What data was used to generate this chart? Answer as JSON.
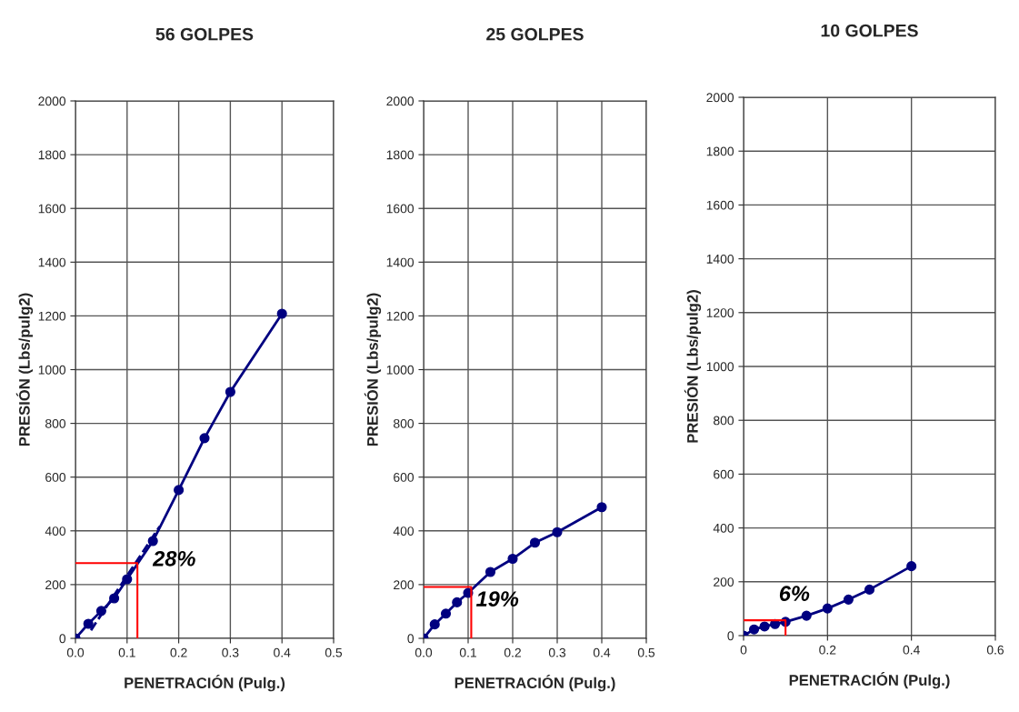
{
  "chart_data": [
    {
      "type": "line",
      "title": "56 GOLPES",
      "xlabel": "PENETRACIÓN (Pulg.)",
      "ylabel": "PRESIÓN (Lbs/pulg2)",
      "xlim": [
        0,
        0.5
      ],
      "xticks": [
        {
          "value": 0,
          "label": "0.0"
        },
        0.1,
        0.2,
        0.3,
        0.4,
        0.5
      ],
      "ylim": [
        0,
        2000
      ],
      "yticks": [
        0,
        200,
        400,
        600,
        800,
        1000,
        1200,
        1400,
        1600,
        1800,
        2000
      ],
      "grid": true,
      "series": [
        {
          "color": "#000080",
          "marker": "circle",
          "line_style": "solid",
          "x": [
            0,
            0.025,
            0.05,
            0.075,
            0.1,
            0.15,
            0.2,
            0.25,
            0.3,
            0.4
          ],
          "values": [
            0,
            54,
            102,
            149,
            220,
            362,
            552,
            745,
            917,
            1208
          ]
        },
        {
          "color": "#000080",
          "marker": "none",
          "line_style": "dashed",
          "x": [
            0.03,
            0.163
          ],
          "values": [
            30,
            416
          ]
        },
        {
          "color": "#ff0000",
          "marker": "none",
          "line_style": "solid",
          "x": [
            0,
            0.12,
            0.12
          ],
          "values": [
            280,
            280,
            0
          ]
        }
      ],
      "annotations": [
        "28%"
      ]
    },
    {
      "type": "line",
      "title": "25 GOLPES",
      "xlabel": "PENETRACIÓN (Pulg.)",
      "ylabel": "PRESIÓN (Lbs/pulg2)",
      "xlim": [
        0,
        0.5
      ],
      "xticks": [
        {
          "value": 0,
          "label": "0.0"
        },
        0.1,
        0.2,
        0.3,
        0.4,
        0.5
      ],
      "ylim": [
        0,
        2000
      ],
      "yticks": [
        0,
        200,
        400,
        600,
        800,
        1000,
        1200,
        1400,
        1600,
        1800,
        2000
      ],
      "grid": true,
      "series": [
        {
          "color": "#000080",
          "marker": "circle",
          "line_style": "solid",
          "x": [
            0,
            0.025,
            0.05,
            0.075,
            0.1,
            0.15,
            0.2,
            0.25,
            0.3,
            0.4
          ],
          "values": [
            0,
            52,
            92,
            134,
            169,
            247,
            296,
            356,
            395,
            488
          ]
        },
        {
          "color": "#ff0000",
          "marker": "none",
          "line_style": "solid",
          "x": [
            0,
            0.107,
            0.107
          ],
          "values": [
            191,
            191,
            0
          ]
        }
      ],
      "annotations": [
        "19%"
      ]
    },
    {
      "type": "line",
      "title": "10 GOLPES",
      "xlabel": "PENETRACIÓN (Pulg.)",
      "ylabel": "PRESIÓN (Lbs/pulg2)",
      "xlim": [
        0,
        0.6
      ],
      "xticks": [
        0,
        0.2,
        0.4,
        0.6
      ],
      "ylim": [
        0,
        2000
      ],
      "yticks": [
        0,
        200,
        400,
        600,
        800,
        1000,
        1200,
        1400,
        1600,
        1800,
        2000
      ],
      "grid": true,
      "series": [
        {
          "color": "#000080",
          "marker": "circle",
          "line_style": "solid",
          "x": [
            0,
            0.025,
            0.05,
            0.075,
            0.1,
            0.15,
            0.2,
            0.25,
            0.3,
            0.4
          ],
          "values": [
            0,
            23,
            34,
            43,
            51,
            74,
            101,
            134,
            171,
            258
          ]
        },
        {
          "color": "#ff0000",
          "marker": "none",
          "line_style": "solid",
          "x": [
            0,
            0.1,
            0.1
          ],
          "values": [
            57,
            57,
            0
          ]
        }
      ],
      "annotations": [
        "6%"
      ]
    }
  ]
}
